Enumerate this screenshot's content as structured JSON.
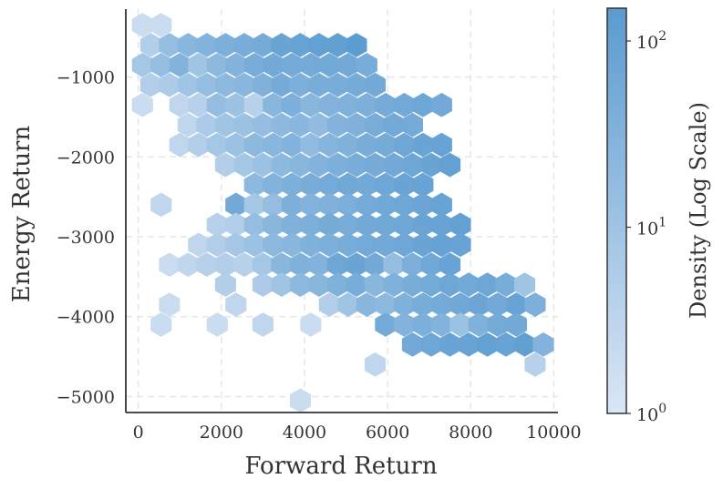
{
  "chart_data": {
    "type": "hexbin",
    "xlabel": "Forward Return",
    "ylabel": "Energy Return",
    "xlim": [
      -300,
      10100
    ],
    "ylim": [
      -5200,
      -150
    ],
    "xticks": [
      0,
      2000,
      4000,
      6000,
      8000,
      10000
    ],
    "xtick_labels": [
      "0",
      "2000",
      "4000",
      "6000",
      "8000",
      "10000"
    ],
    "yticks": [
      -1000,
      -2000,
      -3000,
      -4000,
      -5000
    ],
    "ytick_labels": [
      "−1000",
      "−2000",
      "−3000",
      "−4000",
      "−5000"
    ],
    "grid": true,
    "colormap": [
      "#dbe6f5",
      "#5a9bd0"
    ],
    "colorbar": {
      "label": "Density (Log Scale)",
      "scale": "log",
      "range": [
        1,
        150
      ],
      "ticks": [
        1,
        10,
        100
      ],
      "tick_labels": [
        "10",
        "10",
        "10"
      ],
      "tick_exponents": [
        "0",
        "1",
        "2"
      ]
    },
    "bins": [
      [
        100,
        -350,
        2
      ],
      [
        550,
        -350,
        2
      ],
      [
        300,
        -600,
        5
      ],
      [
        750,
        -600,
        15
      ],
      [
        1200,
        -600,
        25
      ],
      [
        1650,
        -600,
        30
      ],
      [
        2100,
        -600,
        40
      ],
      [
        2550,
        -600,
        45
      ],
      [
        3000,
        -600,
        50
      ],
      [
        3450,
        -600,
        80
      ],
      [
        3900,
        -600,
        90
      ],
      [
        4350,
        -600,
        100
      ],
      [
        4800,
        -600,
        110
      ],
      [
        5250,
        -600,
        140
      ],
      [
        100,
        -850,
        8
      ],
      [
        550,
        -850,
        15
      ],
      [
        1000,
        -850,
        30
      ],
      [
        1450,
        -850,
        10
      ],
      [
        1900,
        -850,
        20
      ],
      [
        2350,
        -850,
        30
      ],
      [
        2800,
        -850,
        45
      ],
      [
        3250,
        -850,
        60
      ],
      [
        3700,
        -850,
        50
      ],
      [
        4150,
        -850,
        55
      ],
      [
        4600,
        -850,
        60
      ],
      [
        5050,
        -850,
        60
      ],
      [
        5500,
        -850,
        45
      ],
      [
        300,
        -1100,
        5
      ],
      [
        750,
        -1100,
        6
      ],
      [
        1200,
        -1100,
        10
      ],
      [
        1650,
        -1100,
        15
      ],
      [
        2100,
        -1100,
        20
      ],
      [
        2550,
        -1100,
        25
      ],
      [
        3000,
        -1100,
        35
      ],
      [
        3450,
        -1100,
        50
      ],
      [
        3900,
        -1100,
        40
      ],
      [
        4350,
        -1100,
        45
      ],
      [
        4800,
        -1100,
        45
      ],
      [
        5250,
        -1100,
        50
      ],
      [
        5700,
        -1100,
        60
      ],
      [
        100,
        -1350,
        2
      ],
      [
        1000,
        -1350,
        3
      ],
      [
        1450,
        -1350,
        4
      ],
      [
        1900,
        -1350,
        15
      ],
      [
        2350,
        -1350,
        12
      ],
      [
        2800,
        -1350,
        4
      ],
      [
        3250,
        -1350,
        25
      ],
      [
        3700,
        -1350,
        40
      ],
      [
        4150,
        -1350,
        25
      ],
      [
        4600,
        -1350,
        30
      ],
      [
        5050,
        -1350,
        35
      ],
      [
        5500,
        -1350,
        40
      ],
      [
        5950,
        -1350,
        50
      ],
      [
        6400,
        -1350,
        60
      ],
      [
        6850,
        -1350,
        70
      ],
      [
        7300,
        -1350,
        60
      ],
      [
        1200,
        -1600,
        3
      ],
      [
        1650,
        -1600,
        6
      ],
      [
        2100,
        -1600,
        10
      ],
      [
        2550,
        -1600,
        12
      ],
      [
        3000,
        -1600,
        15
      ],
      [
        3450,
        -1600,
        20
      ],
      [
        3900,
        -1600,
        25
      ],
      [
        4350,
        -1600,
        18
      ],
      [
        4800,
        -1600,
        30
      ],
      [
        5250,
        -1600,
        35
      ],
      [
        5700,
        -1600,
        45
      ],
      [
        6150,
        -1600,
        60
      ],
      [
        6600,
        -1600,
        55
      ],
      [
        1000,
        -1850,
        3
      ],
      [
        1450,
        -1850,
        5
      ],
      [
        1900,
        -1850,
        8
      ],
      [
        2350,
        -1850,
        12
      ],
      [
        2800,
        -1850,
        20
      ],
      [
        3250,
        -1850,
        25
      ],
      [
        3700,
        -1850,
        30
      ],
      [
        4150,
        -1850,
        18
      ],
      [
        4600,
        -1850,
        28
      ],
      [
        5050,
        -1850,
        35
      ],
      [
        5500,
        -1850,
        45
      ],
      [
        5950,
        -1850,
        50
      ],
      [
        6400,
        -1850,
        70
      ],
      [
        6850,
        -1850,
        80
      ],
      [
        7300,
        -1850,
        90
      ],
      [
        2100,
        -2100,
        5
      ],
      [
        2550,
        -2100,
        8
      ],
      [
        3000,
        -2100,
        12
      ],
      [
        3450,
        -2100,
        20
      ],
      [
        3900,
        -2100,
        25
      ],
      [
        4350,
        -2100,
        30
      ],
      [
        4800,
        -2100,
        40
      ],
      [
        5250,
        -2100,
        45
      ],
      [
        5700,
        -2100,
        50
      ],
      [
        6150,
        -2100,
        60
      ],
      [
        6600,
        -2100,
        70
      ],
      [
        7050,
        -2100,
        80
      ],
      [
        7500,
        -2100,
        100
      ],
      [
        2800,
        -2350,
        20
      ],
      [
        3250,
        -2350,
        30
      ],
      [
        3700,
        -2350,
        40
      ],
      [
        4150,
        -2350,
        45
      ],
      [
        4600,
        -2350,
        55
      ],
      [
        5050,
        -2350,
        65
      ],
      [
        5500,
        -2350,
        60
      ],
      [
        5950,
        -2350,
        70
      ],
      [
        6400,
        -2350,
        80
      ],
      [
        6850,
        -2350,
        90
      ],
      [
        550,
        -2600,
        3
      ],
      [
        2350,
        -2600,
        60
      ],
      [
        2800,
        -2600,
        8
      ],
      [
        3250,
        -2600,
        15
      ],
      [
        3700,
        -2600,
        40
      ],
      [
        4150,
        -2600,
        30
      ],
      [
        4600,
        -2600,
        35
      ],
      [
        5050,
        -2600,
        40
      ],
      [
        5500,
        -2600,
        55
      ],
      [
        5950,
        -2600,
        65
      ],
      [
        6400,
        -2600,
        70
      ],
      [
        6850,
        -2600,
        75
      ],
      [
        7300,
        -2600,
        90
      ],
      [
        1900,
        -2850,
        4
      ],
      [
        2350,
        -2850,
        5
      ],
      [
        2800,
        -2850,
        15
      ],
      [
        3250,
        -2850,
        25
      ],
      [
        3700,
        -2850,
        35
      ],
      [
        4150,
        -2850,
        40
      ],
      [
        4600,
        -2850,
        50
      ],
      [
        5050,
        -2850,
        45
      ],
      [
        5500,
        -2850,
        60
      ],
      [
        5950,
        -2850,
        65
      ],
      [
        6400,
        -2850,
        70
      ],
      [
        6850,
        -2850,
        80
      ],
      [
        7300,
        -2850,
        90
      ],
      [
        7750,
        -2850,
        100
      ],
      [
        1450,
        -3100,
        3
      ],
      [
        1900,
        -3100,
        5
      ],
      [
        2350,
        -3100,
        8
      ],
      [
        2800,
        -3100,
        12
      ],
      [
        3250,
        -3100,
        20
      ],
      [
        3700,
        -3100,
        25
      ],
      [
        4150,
        -3100,
        35
      ],
      [
        4600,
        -3100,
        40
      ],
      [
        5050,
        -3100,
        45
      ],
      [
        5500,
        -3100,
        55
      ],
      [
        5950,
        -3100,
        60
      ],
      [
        6400,
        -3100,
        70
      ],
      [
        6850,
        -3100,
        80
      ],
      [
        7300,
        -3100,
        95
      ],
      [
        7750,
        -3100,
        90
      ],
      [
        750,
        -3350,
        2
      ],
      [
        1200,
        -3350,
        3
      ],
      [
        1650,
        -3350,
        4
      ],
      [
        2100,
        -3350,
        5
      ],
      [
        2550,
        -3350,
        4
      ],
      [
        3000,
        -3350,
        8
      ],
      [
        3450,
        -3350,
        25
      ],
      [
        3900,
        -3350,
        35
      ],
      [
        4350,
        -3350,
        30
      ],
      [
        4800,
        -3350,
        70
      ],
      [
        5250,
        -3350,
        80
      ],
      [
        5700,
        -3350,
        60
      ],
      [
        6150,
        -3350,
        15
      ],
      [
        6600,
        -3350,
        40
      ],
      [
        7050,
        -3350,
        65
      ],
      [
        7500,
        -3350,
        90
      ],
      [
        2100,
        -3600,
        5
      ],
      [
        3000,
        -3600,
        6
      ],
      [
        3450,
        -3600,
        10
      ],
      [
        3900,
        -3600,
        20
      ],
      [
        4350,
        -3600,
        25
      ],
      [
        4800,
        -3600,
        35
      ],
      [
        5250,
        -3600,
        45
      ],
      [
        5700,
        -3600,
        25
      ],
      [
        6150,
        -3600,
        35
      ],
      [
        6600,
        -3600,
        45
      ],
      [
        7050,
        -3600,
        55
      ],
      [
        7500,
        -3600,
        70
      ],
      [
        7950,
        -3600,
        60
      ],
      [
        8400,
        -3600,
        70
      ],
      [
        8850,
        -3600,
        45
      ],
      [
        9300,
        -3600,
        10
      ],
      [
        750,
        -3850,
        2
      ],
      [
        2350,
        -3850,
        3
      ],
      [
        4600,
        -3850,
        5
      ],
      [
        5050,
        -3850,
        10
      ],
      [
        5500,
        -3850,
        25
      ],
      [
        5950,
        -3850,
        20
      ],
      [
        6400,
        -3850,
        35
      ],
      [
        6850,
        -3850,
        45
      ],
      [
        7300,
        -3850,
        55
      ],
      [
        7750,
        -3850,
        65
      ],
      [
        8200,
        -3850,
        75
      ],
      [
        8650,
        -3850,
        60
      ],
      [
        9100,
        -3850,
        90
      ],
      [
        9550,
        -3850,
        40
      ],
      [
        550,
        -4100,
        2
      ],
      [
        1900,
        -4100,
        2
      ],
      [
        3000,
        -4100,
        3
      ],
      [
        4150,
        -4100,
        2
      ],
      [
        5950,
        -4100,
        55
      ],
      [
        6400,
        -4100,
        30
      ],
      [
        6850,
        -4100,
        40
      ],
      [
        7300,
        -4100,
        30
      ],
      [
        7750,
        -4100,
        12
      ],
      [
        8200,
        -4100,
        35
      ],
      [
        8650,
        -4100,
        55
      ],
      [
        9100,
        -4100,
        60
      ],
      [
        6600,
        -4350,
        60
      ],
      [
        7050,
        -4350,
        70
      ],
      [
        7500,
        -4350,
        80
      ],
      [
        7950,
        -4350,
        90
      ],
      [
        8400,
        -4350,
        100
      ],
      [
        8850,
        -4350,
        90
      ],
      [
        9300,
        -4350,
        110
      ],
      [
        9750,
        -4350,
        30
      ],
      [
        5700,
        -4600,
        3
      ],
      [
        9550,
        -4600,
        4
      ],
      [
        3900,
        -5050,
        2
      ]
    ]
  }
}
